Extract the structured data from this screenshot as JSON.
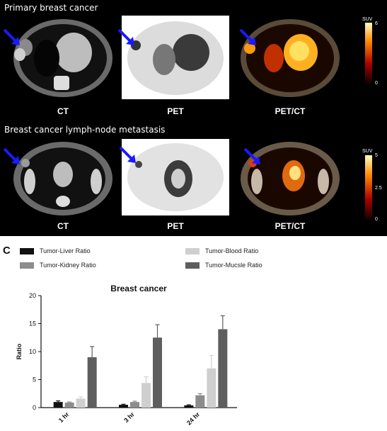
{
  "figure": {
    "row1_title": "Primary breast cancer",
    "row2_title": "Breast cancer lymph-node metastasis",
    "labels": {
      "ct": "CT",
      "pet": "PET",
      "petct": "PET/CT"
    },
    "colorbar1": {
      "unit": "SUV",
      "max": "6",
      "min": "0"
    },
    "colorbar2": {
      "unit": "SUV",
      "max": "5",
      "mid": "2.5",
      "min": "0"
    },
    "colors": {
      "arrow": "#1a1aff",
      "background": "#000000"
    }
  },
  "panel_letter": "C",
  "chart_data": {
    "type": "bar",
    "title": "Breast cancer",
    "xlabel": "",
    "ylabel": "Ratio",
    "ylim": [
      0,
      20
    ],
    "yticks": [
      "0",
      "5",
      "10",
      "15",
      "20"
    ],
    "categories": [
      "1 hr",
      "3 hr",
      "24 hr"
    ],
    "series": [
      {
        "name": "Tumor-Liver Ratio",
        "color": "#111111",
        "values": [
          1.0,
          0.5,
          0.4
        ],
        "errors": [
          0.2,
          0.1,
          0.1
        ]
      },
      {
        "name": "Tumor-Kidney Ratio",
        "color": "#8c8c8c",
        "values": [
          0.9,
          1.0,
          2.2
        ],
        "errors": [
          0.1,
          0.15,
          0.3
        ]
      },
      {
        "name": "Tumor-Blood Ratio",
        "color": "#cfcfcf",
        "values": [
          1.6,
          4.4,
          7.0
        ],
        "errors": [
          0.3,
          1.1,
          2.3
        ]
      },
      {
        "name": "Tumor-Mucsle Ratio",
        "color": "#5e5e5e",
        "values": [
          9.0,
          12.5,
          14.0
        ],
        "errors": [
          1.9,
          2.3,
          2.4
        ]
      }
    ],
    "grid": false,
    "legend_position": "top"
  }
}
